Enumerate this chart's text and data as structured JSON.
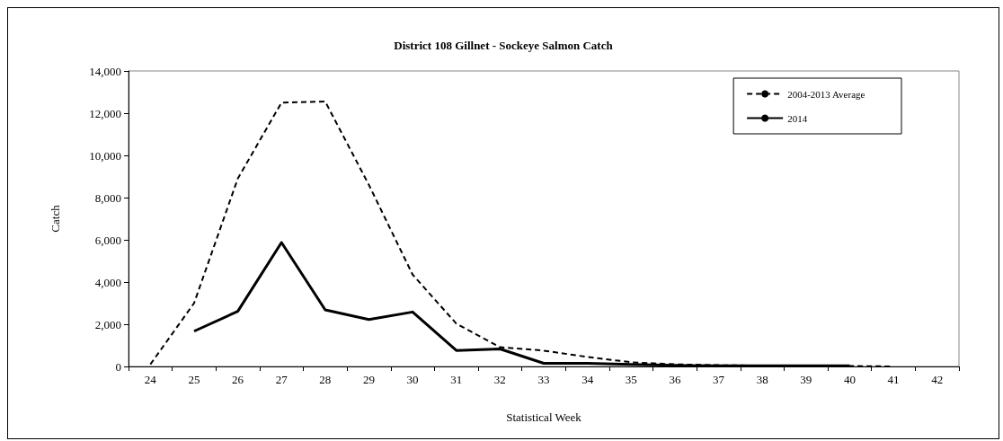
{
  "chart_data": {
    "type": "line",
    "title": "District 108 Gillnet - Sockeye Salmon Catch",
    "xlabel": "Statistical Week",
    "ylabel": "Catch",
    "categories": [
      "24",
      "25",
      "26",
      "27",
      "28",
      "29",
      "30",
      "31",
      "32",
      "33",
      "34",
      "35",
      "36",
      "37",
      "38",
      "39",
      "40",
      "41",
      "42"
    ],
    "series": [
      {
        "name": "2004-2013 Average",
        "color": "#000000",
        "line_style": "dashed",
        "values": [
          100,
          3000,
          8900,
          12500,
          12550,
          8600,
          4350,
          2030,
          910,
          750,
          450,
          200,
          100,
          60,
          40,
          30,
          20,
          0,
          null
        ]
      },
      {
        "name": "2014",
        "color": "#000000",
        "line_style": "solid",
        "values": [
          null,
          1670,
          2610,
          5870,
          2680,
          2220,
          2580,
          760,
          830,
          150,
          150,
          100,
          50,
          30,
          30,
          30,
          30,
          null,
          null
        ]
      }
    ],
    "ylim": [
      0,
      14000
    ],
    "yticks": [
      0,
      {
        "value": 2000,
        "label": "2,000"
      },
      {
        "value": 4000,
        "label": "4,000"
      },
      {
        "value": 6000,
        "label": "6,000"
      },
      {
        "value": 8000,
        "label": "8,000"
      },
      {
        "value": 10000,
        "label": "10,000"
      },
      {
        "value": 12000,
        "label": "12,000"
      },
      {
        "value": 14000,
        "label": "14,000"
      }
    ],
    "grid": false,
    "legend": "top right",
    "marker": "none"
  }
}
